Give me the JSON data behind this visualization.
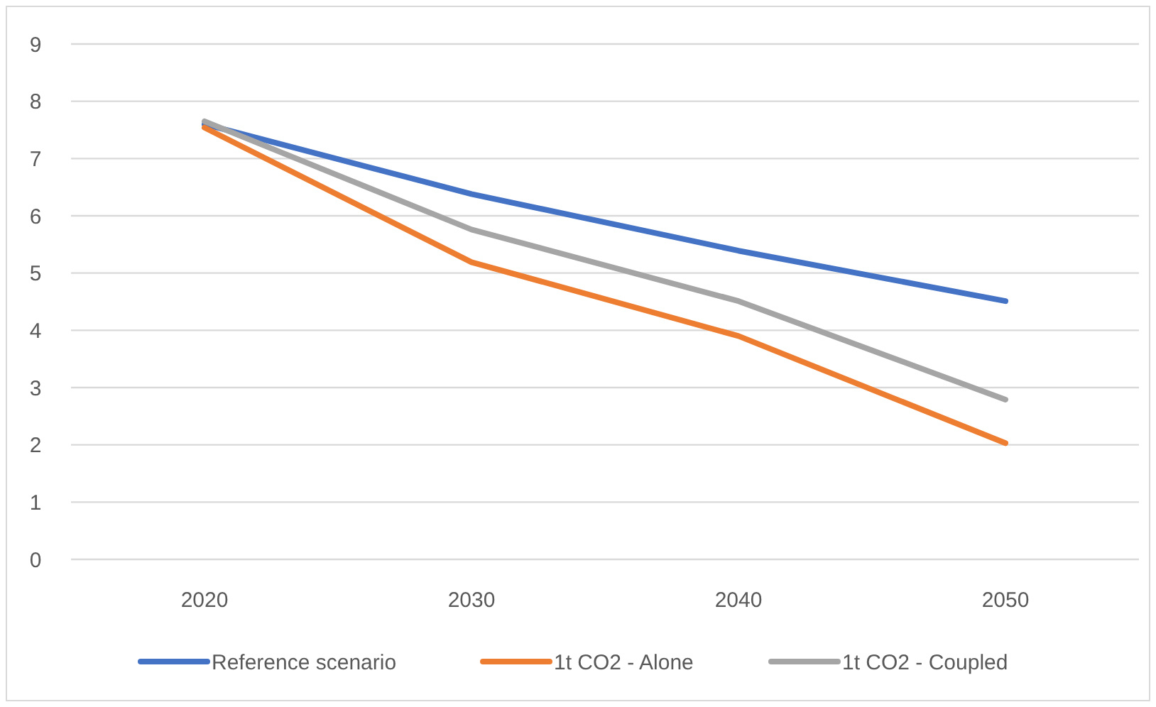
{
  "chart_data": {
    "type": "line",
    "categories": [
      "2020",
      "2030",
      "2040",
      "2050"
    ],
    "series": [
      {
        "name": "Reference scenario",
        "color": "#4472c4",
        "values": [
          7.6,
          6.38,
          5.39,
          4.51
        ]
      },
      {
        "name": "1t CO2 - Alone",
        "color": "#ed7d31",
        "values": [
          7.54,
          5.19,
          3.9,
          2.03
        ]
      },
      {
        "name": "1t CO2 - Coupled",
        "color": "#a5a5a5",
        "values": [
          7.65,
          5.76,
          4.51,
          2.79
        ]
      }
    ],
    "ylim": [
      0,
      9
    ],
    "yticks": [
      0,
      1,
      2,
      3,
      4,
      5,
      6,
      7,
      8,
      9
    ],
    "grid": "y",
    "legend": "bottom"
  }
}
